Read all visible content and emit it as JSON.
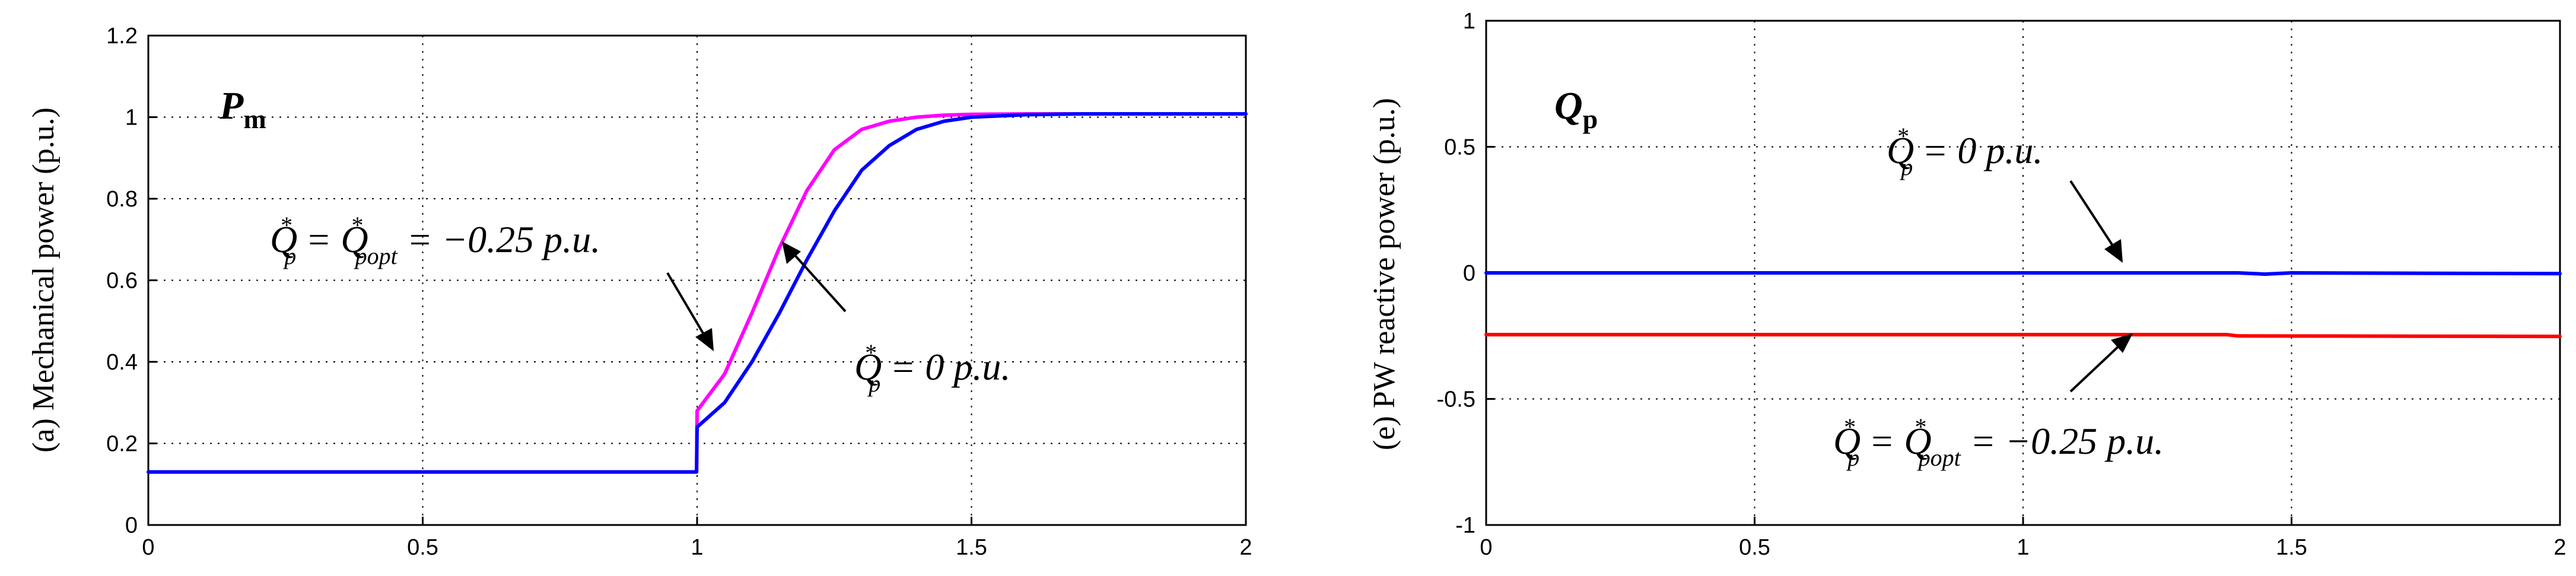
{
  "chart_data": [
    {
      "type": "line",
      "title": "P",
      "title_sub": "m",
      "xlabel": "",
      "ylabel": "(a) Mechanical power (p.u.)",
      "xlim": [
        0,
        2
      ],
      "ylim": [
        0,
        1.2
      ],
      "xticks": [
        0,
        0.5,
        1,
        1.5,
        2
      ],
      "xtick_labels": [
        "0",
        "0.5",
        "1",
        "1.5",
        "2"
      ],
      "yticks": [
        0,
        0.2,
        0.4,
        0.6,
        0.8,
        1,
        1.2
      ],
      "ytick_labels": [
        "0",
        "0.2",
        "0.4",
        "0.6",
        "0.8",
        "1",
        "1.2"
      ],
      "series": [
        {
          "color": "#ff00ff",
          "x": [
            0,
            0.999,
            1.0,
            1.05,
            1.1,
            1.15,
            1.2,
            1.25,
            1.3,
            1.35,
            1.4,
            1.45,
            1.5,
            1.6,
            1.7,
            2.0
          ],
          "y": [
            0.13,
            0.13,
            0.28,
            0.37,
            0.52,
            0.68,
            0.82,
            0.92,
            0.97,
            0.99,
            1.0,
            1.005,
            1.007,
            1.008,
            1.008,
            1.008
          ]
        },
        {
          "color": "#0000ff",
          "x": [
            0,
            0.999,
            1.0,
            1.05,
            1.1,
            1.15,
            1.2,
            1.25,
            1.3,
            1.35,
            1.4,
            1.45,
            1.5,
            1.6,
            1.7,
            2.0
          ],
          "y": [
            0.13,
            0.13,
            0.24,
            0.3,
            0.4,
            0.52,
            0.65,
            0.77,
            0.87,
            0.93,
            0.97,
            0.99,
            1.0,
            1.006,
            1.008,
            1.008
          ]
        }
      ],
      "annotations": [
        {
          "parts": [
            "Q",
            "*",
            "p",
            " = Q",
            "*",
            "popt",
            " = −0.25 p.u."
          ],
          "label": "Q*p = Q*popt = −0.25 p.u."
        },
        {
          "parts": [
            "Q",
            "*",
            "p",
            " = 0 p.u."
          ],
          "label": "Q*p = 0 p.u."
        }
      ]
    },
    {
      "type": "line",
      "title": "Q",
      "title_sub": "p",
      "xlabel": "",
      "ylabel": "(e) PW reactive power (p.u.)",
      "xlim": [
        0,
        2
      ],
      "ylim": [
        -1,
        1
      ],
      "xticks": [
        0,
        0.5,
        1,
        1.5,
        2
      ],
      "xtick_labels": [
        "0",
        "0.5",
        "1",
        "1.5",
        "2"
      ],
      "yticks": [
        -1,
        -0.5,
        0,
        0.5,
        1
      ],
      "ytick_labels": [
        "-1",
        "-0.5",
        "0",
        "0.5",
        "1"
      ],
      "series": [
        {
          "color": "#0000ff",
          "x": [
            0,
            1.4,
            1.45,
            1.5,
            2.0
          ],
          "y": [
            0.0,
            0.0,
            -0.005,
            0.0,
            -0.003
          ]
        },
        {
          "color": "#ff0000",
          "x": [
            0,
            1.38,
            1.4,
            2.0
          ],
          "y": [
            -0.245,
            -0.245,
            -0.25,
            -0.252
          ]
        }
      ],
      "annotations": [
        {
          "parts": [
            "Q",
            "*",
            "p",
            " = 0 p.u."
          ],
          "label": "Q*p = 0 p.u."
        },
        {
          "parts": [
            "Q",
            "*",
            "p",
            " = Q",
            "*",
            "popt",
            " = −0.25 p.u."
          ],
          "label": "Q*p = Q*popt = −0.25 p.u."
        }
      ]
    }
  ]
}
